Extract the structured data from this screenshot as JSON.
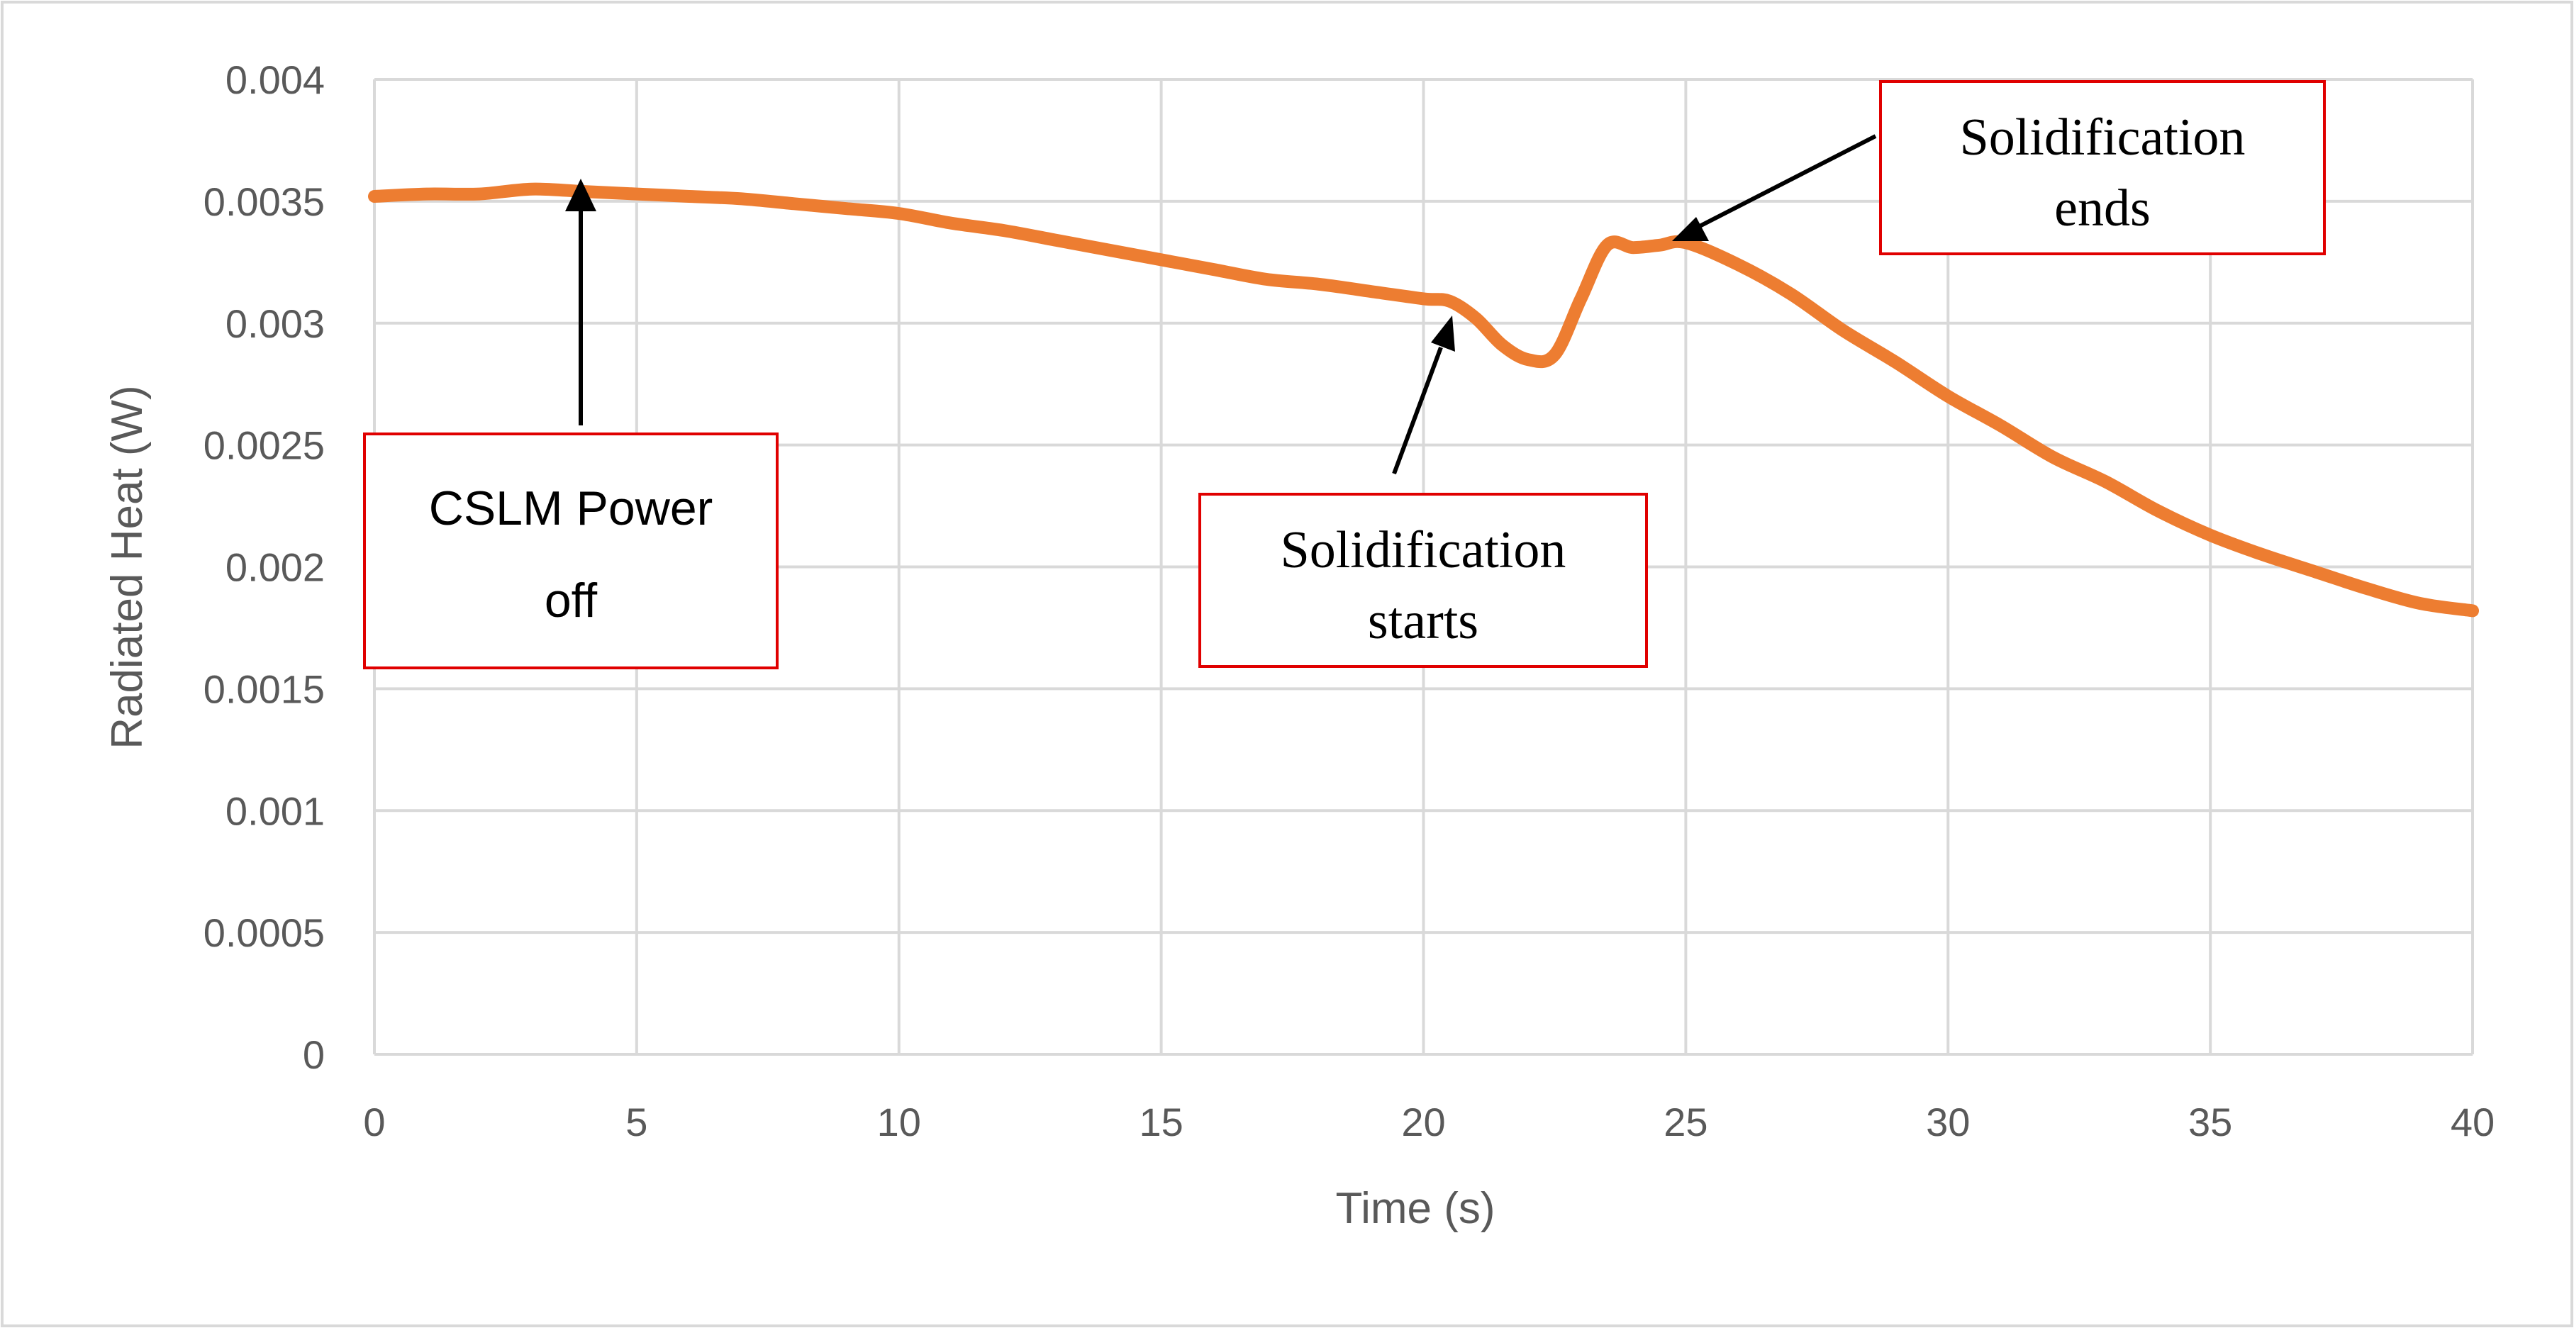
{
  "chart_data": {
    "type": "line",
    "title": "",
    "xlabel": "Time (s)",
    "ylabel": "Radiated Heat (W)",
    "xlim": [
      0,
      40
    ],
    "ylim": [
      0,
      0.004
    ],
    "x_ticks": [
      "0",
      "5",
      "10",
      "15",
      "20",
      "25",
      "30",
      "35",
      "40"
    ],
    "y_ticks": [
      "0",
      "0.0005",
      "0.001",
      "0.0015",
      "0.002",
      "0.0025",
      "0.003",
      "0.0035",
      "0.004"
    ],
    "grid": true,
    "legend": "none",
    "series": [
      {
        "color": "#ED7D31",
        "x": [
          0,
          1,
          2,
          3,
          4,
          5,
          6,
          7,
          8,
          9,
          10,
          11,
          12,
          13,
          14,
          15,
          16,
          17,
          18,
          19,
          20,
          20.5,
          21,
          21.5,
          22,
          22.5,
          23,
          23.5,
          24,
          24.5,
          25,
          26,
          27,
          28,
          29,
          30,
          31,
          32,
          33,
          34,
          35,
          36,
          37,
          38,
          39,
          40
        ],
        "y": [
          0.00352,
          0.00353,
          0.00353,
          0.00355,
          0.00354,
          0.00353,
          0.00352,
          0.00351,
          0.00349,
          0.00347,
          0.00345,
          0.00341,
          0.00338,
          0.00334,
          0.0033,
          0.00326,
          0.00322,
          0.00318,
          0.00316,
          0.00313,
          0.0031,
          0.00309,
          0.00302,
          0.00291,
          0.00285,
          0.00287,
          0.0031,
          0.00332,
          0.00331,
          0.00332,
          0.00333,
          0.00324,
          0.00312,
          0.00297,
          0.00284,
          0.0027,
          0.00258,
          0.00245,
          0.00235,
          0.00223,
          0.00213,
          0.00205,
          0.00198,
          0.00191,
          0.00185,
          0.00182
        ]
      }
    ],
    "annotations": [
      {
        "text_lines": [
          "CSLM Power",
          "off"
        ],
        "arrow_to": [
          3.9,
          0.00355
        ]
      },
      {
        "text_lines": [
          "Solidification",
          "starts"
        ],
        "arrow_to": [
          20.6,
          0.00305
        ]
      },
      {
        "text_lines": [
          "Solidification",
          "ends"
        ],
        "arrow_to": [
          24.6,
          0.00335
        ]
      }
    ],
    "colors": {
      "line": "#ED7D31",
      "grid": "#D9D9D9",
      "annotation_box": "#E00000",
      "text": "#595959",
      "frame": "#D9D9D9"
    }
  }
}
